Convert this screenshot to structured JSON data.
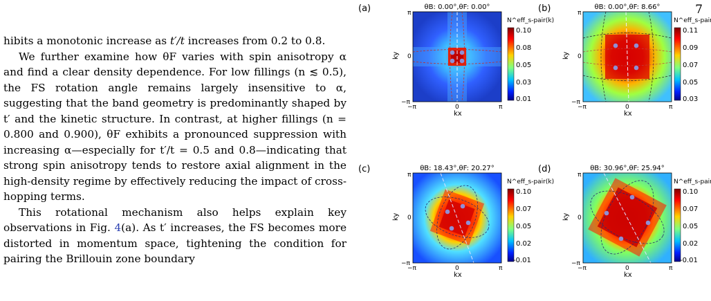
{
  "page_number": "7",
  "text": {
    "p1_a": "hibits a monotonic increase as ",
    "p1_var": "t′/t",
    "p1_b": " increases from 0.2 to 0.8.",
    "p2": "We further examine how θF varies with spin anisotropy α and find a clear density dependence. For low fillings (n ≲ 0.5), the FS rotation angle remains largely insensitive to α, suggesting that the band geometry is predominantly shaped by t′ and the kinetic structure. In contrast, at higher fillings (n = 0.800 and 0.900), θF exhibits a pronounced suppression with increasing α—especially for t′/t = 0.5 and 0.8—indicating that strong spin anisotropy tends to restore axial alignment in the high-density regime by effectively reducing the impact of cross-hopping terms.",
    "p3_a": "This rotational mechanism also helps explain key observations in Fig. ",
    "p3_ref": "4",
    "p3_b": "(a). As t′ increases, the FS becomes more distorted in momentum space, tightening the condition for pairing the Brillouin zone boundary"
  },
  "figure": {
    "panels": [
      {
        "label": "(a)",
        "title": "θB: 0.00°,θF: 0.00°",
        "cbar_ticks": [
          "0.10",
          "0.08",
          "0.05",
          "0.03",
          "0.01"
        ]
      },
      {
        "label": "(b)",
        "title": "θB: 0.00°,θF: 8.66°",
        "cbar_ticks": [
          "0.11",
          "0.09",
          "0.07",
          "0.05",
          "0.03"
        ]
      },
      {
        "label": "(c)",
        "title": "θB: 18.43°,θF: 20.27°",
        "cbar_ticks": [
          "0.10",
          "0.07",
          "0.05",
          "0.02",
          "-0.01"
        ]
      },
      {
        "label": "(d)",
        "title": "θB: 30.96°,θF: 25.94°",
        "cbar_ticks": [
          "0.10",
          "0.07",
          "0.05",
          "0.02",
          "-0.01"
        ]
      }
    ],
    "cbar_label": "N^eff_s-pair(k)",
    "xlabel": "kx",
    "ylabel": "ky",
    "tick_pi": "π",
    "tick_neg_pi": "−π",
    "tick_zero": "0",
    "colors": {
      "hot": "#c80000",
      "mid": "#ffd200",
      "cool": "#1e64ff",
      "cold": "#00008b",
      "dot": "#8f8fd4"
    }
  }
}
